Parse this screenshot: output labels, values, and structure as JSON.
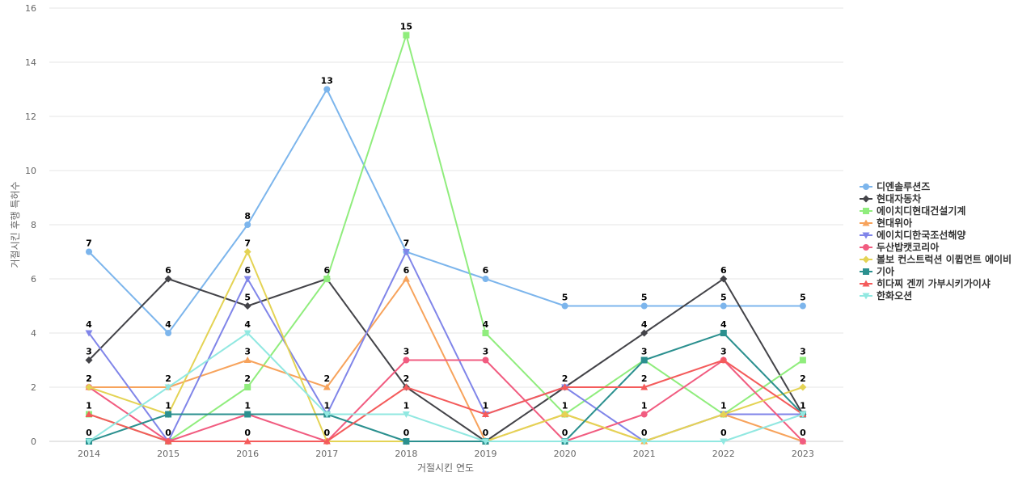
{
  "chart_data": {
    "type": "line",
    "xlabel": "거절시킨 연도",
    "ylabel": "거절시킨 후행 특허수",
    "categories": [
      "2014",
      "2015",
      "2016",
      "2017",
      "2018",
      "2019",
      "2020",
      "2021",
      "2022",
      "2023"
    ],
    "ylim": [
      0,
      16
    ],
    "yticks": [
      0,
      2,
      4,
      6,
      8,
      10,
      12,
      14,
      16
    ],
    "grid": true,
    "legend_position": "right",
    "series": [
      {
        "name": "디엔솔루션즈",
        "color": "#7cb5ec",
        "marker": "circle",
        "values": [
          7,
          4,
          8,
          13,
          7,
          6,
          5,
          5,
          5,
          5
        ]
      },
      {
        "name": "현대자동차",
        "color": "#434348",
        "marker": "diamond",
        "values": [
          3,
          6,
          5,
          6,
          2,
          0,
          2,
          4,
          6,
          1
        ]
      },
      {
        "name": "에이치디현대건설기계",
        "color": "#90ed7d",
        "marker": "square",
        "values": [
          1,
          0,
          2,
          6,
          15,
          4,
          1,
          3,
          1,
          3
        ]
      },
      {
        "name": "현대위아",
        "color": "#f7a35c",
        "marker": "triangle",
        "values": [
          2,
          2,
          3,
          2,
          6,
          0,
          1,
          0,
          1,
          0
        ]
      },
      {
        "name": "에이치디한국조선해양",
        "color": "#8085e9",
        "marker": "triangle-down",
        "values": [
          4,
          0,
          6,
          1,
          7,
          1,
          2,
          0,
          1,
          1
        ]
      },
      {
        "name": "두산밥캣코리아",
        "color": "#f15c80",
        "marker": "circle",
        "values": [
          2,
          0,
          1,
          0,
          3,
          3,
          0,
          1,
          3,
          0
        ]
      },
      {
        "name": "볼보 컨스트럭션 이큅먼트 에이비",
        "color": "#e4d354",
        "marker": "diamond",
        "values": [
          2,
          1,
          7,
          0,
          0,
          0,
          1,
          0,
          1,
          2
        ]
      },
      {
        "name": "기아",
        "color": "#2b908f",
        "marker": "square",
        "values": [
          0,
          1,
          1,
          1,
          0,
          0,
          0,
          3,
          4,
          1
        ]
      },
      {
        "name": "히다찌 겐끼 가부시키가이샤",
        "color": "#f45b5b",
        "marker": "triangle",
        "values": [
          1,
          0,
          0,
          0,
          2,
          1,
          2,
          2,
          3,
          1
        ]
      },
      {
        "name": "한화오션",
        "color": "#91e8e1",
        "marker": "triangle-down",
        "values": [
          0,
          2,
          4,
          1,
          1,
          0,
          0,
          0,
          0,
          1
        ]
      }
    ],
    "data_labels": [
      {
        "x": "2014",
        "values": [
          7,
          4,
          3,
          2,
          2,
          1,
          0
        ]
      },
      {
        "x": "2015",
        "values": [
          6,
          4,
          2,
          1,
          0
        ]
      },
      {
        "x": "2016",
        "values": [
          8,
          7,
          6,
          5,
          4,
          3,
          2,
          1,
          0
        ]
      },
      {
        "x": "2017",
        "values": [
          13,
          6,
          2,
          1,
          0
        ]
      },
      {
        "x": "2018",
        "values": [
          15,
          7,
          6,
          3,
          2,
          1,
          0
        ]
      },
      {
        "x": "2019",
        "values": [
          6,
          4,
          3,
          1,
          0
        ]
      },
      {
        "x": "2020",
        "values": [
          5,
          2,
          1,
          0
        ]
      },
      {
        "x": "2021",
        "values": [
          5,
          4,
          3,
          2,
          1,
          0
        ]
      },
      {
        "x": "2022",
        "values": [
          6,
          5,
          4,
          3,
          1,
          0
        ]
      },
      {
        "x": "2023",
        "values": [
          5,
          3,
          2,
          1,
          0
        ]
      }
    ]
  }
}
